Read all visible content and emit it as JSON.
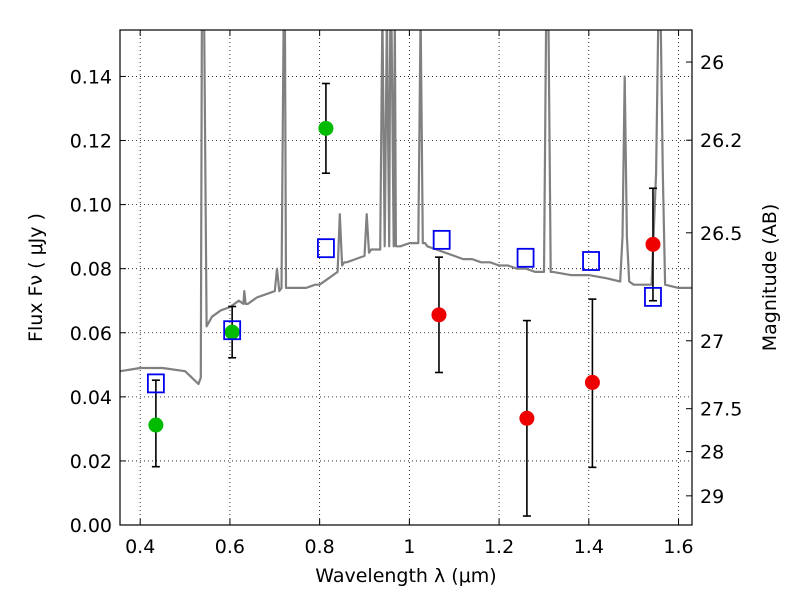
{
  "chart_data": {
    "type": "scatter",
    "xlabel": "Wavelength  λ (μm)",
    "ylabel": "Flux  Fν  ( μJy )",
    "y2label": "Magnitude (AB)",
    "xlim": [
      0.355,
      1.63
    ],
    "ylim": [
      0.0,
      0.1545
    ],
    "x_ticks": [
      0.4,
      0.6,
      0.8,
      1.0,
      1.2,
      1.4,
      1.6
    ],
    "x_tick_labels": [
      "0.4",
      "0.6",
      "0.8",
      "1",
      "1.2",
      "1.4",
      "1.6"
    ],
    "y_ticks": [
      0.0,
      0.02,
      0.04,
      0.06,
      0.08,
      0.1,
      0.12,
      0.14
    ],
    "y_tick_labels": [
      "0.00",
      "0.02",
      "0.04",
      "0.06",
      "0.08",
      "0.10",
      "0.12",
      "0.14"
    ],
    "y2_ticks": [
      {
        "label": "26",
        "flux": 0.1445
      },
      {
        "label": "26.2",
        "flux": 0.1201
      },
      {
        "label": "26.5",
        "flux": 0.0912
      },
      {
        "label": "27",
        "flux": 0.0575
      },
      {
        "label": "27.5",
        "flux": 0.0363
      },
      {
        "label": "28",
        "flux": 0.0229
      },
      {
        "label": "29",
        "flux": 0.0091
      }
    ],
    "grid": true,
    "series": [
      {
        "marker": "circle",
        "color": "#00bb00",
        "points": [
          {
            "x": 0.435,
            "y": 0.0312,
            "yerr_low": 0.0182,
            "yerr_high": 0.0452
          },
          {
            "x": 0.605,
            "y": 0.0602,
            "yerr_low": 0.0522,
            "yerr_high": 0.0682
          },
          {
            "x": 0.814,
            "y": 0.1238,
            "yerr_low": 0.1098,
            "yerr_high": 0.1378
          }
        ]
      },
      {
        "marker": "circle",
        "color": "#ee0000",
        "points": [
          {
            "x": 1.066,
            "y": 0.0656,
            "yerr_low": 0.0476,
            "yerr_high": 0.0836
          },
          {
            "x": 1.262,
            "y": 0.0333,
            "yerr_low": 0.0028,
            "yerr_high": 0.0638
          },
          {
            "x": 1.408,
            "y": 0.0445,
            "yerr_low": 0.018,
            "yerr_high": 0.0705
          },
          {
            "x": 1.543,
            "y": 0.0876,
            "yerr_low": 0.07,
            "yerr_high": 0.1051
          }
        ]
      },
      {
        "marker": "square-open",
        "color": "#0000ee",
        "points": [
          {
            "x": 0.435,
            "y": 0.0442
          },
          {
            "x": 0.605,
            "y": 0.0608
          },
          {
            "x": 0.814,
            "y": 0.0864
          },
          {
            "x": 1.072,
            "y": 0.089
          },
          {
            "x": 1.259,
            "y": 0.0834
          },
          {
            "x": 1.405,
            "y": 0.0824
          },
          {
            "x": 1.543,
            "y": 0.0712
          }
        ]
      },
      {
        "type": "line",
        "color": "#808080",
        "x": [
          0.355,
          0.4,
          0.45,
          0.5,
          0.53,
          0.535,
          0.5375,
          0.5425,
          0.548,
          0.56,
          0.58,
          0.6,
          0.62,
          0.63,
          0.632,
          0.635,
          0.64,
          0.65,
          0.66,
          0.68,
          0.7,
          0.705,
          0.71,
          0.715,
          0.72,
          0.7225,
          0.725,
          0.73,
          0.75,
          0.77,
          0.79,
          0.8,
          0.82,
          0.84,
          0.845,
          0.85,
          0.855,
          0.86,
          0.88,
          0.9,
          0.905,
          0.91,
          0.915,
          0.92,
          0.935,
          0.94,
          0.945,
          0.95,
          0.955,
          0.9575,
          0.96,
          0.965,
          0.9675,
          0.97,
          0.98,
          1.0,
          1.02,
          1.025,
          1.03,
          1.035,
          1.04,
          1.06,
          1.08,
          1.1,
          1.12,
          1.14,
          1.16,
          1.18,
          1.2,
          1.22,
          1.24,
          1.26,
          1.28,
          1.3,
          1.305,
          1.3075,
          1.31,
          1.315,
          1.32,
          1.36,
          1.4,
          1.44,
          1.47,
          1.475,
          1.48,
          1.485,
          1.49,
          1.5,
          1.52,
          1.54,
          1.55,
          1.555,
          1.5575,
          1.56,
          1.565,
          1.57,
          1.6,
          1.63
        ],
        "y": [
          0.048,
          0.049,
          0.049,
          0.048,
          0.044,
          0.046,
          0.16,
          0.16,
          0.062,
          0.065,
          0.067,
          0.068,
          0.07,
          0.069,
          0.073,
          0.069,
          0.069,
          0.07,
          0.071,
          0.072,
          0.073,
          0.08,
          0.073,
          0.074,
          0.16,
          0.16,
          0.074,
          0.074,
          0.074,
          0.074,
          0.075,
          0.075,
          0.077,
          0.079,
          0.097,
          0.081,
          0.082,
          0.082,
          0.083,
          0.084,
          0.097,
          0.085,
          0.086,
          0.086,
          0.086,
          0.16,
          0.087,
          0.16,
          0.087,
          0.16,
          0.16,
          0.087,
          0.16,
          0.087,
          0.087,
          0.088,
          0.088,
          0.16,
          0.088,
          0.088,
          0.087,
          0.086,
          0.085,
          0.084,
          0.083,
          0.083,
          0.082,
          0.082,
          0.081,
          0.081,
          0.08,
          0.08,
          0.079,
          0.079,
          0.16,
          0.16,
          0.16,
          0.079,
          0.079,
          0.078,
          0.078,
          0.077,
          0.076,
          0.09,
          0.14,
          0.09,
          0.076,
          0.075,
          0.075,
          0.075,
          0.11,
          0.16,
          0.16,
          0.16,
          0.11,
          0.075,
          0.074,
          0.074
        ]
      }
    ]
  }
}
